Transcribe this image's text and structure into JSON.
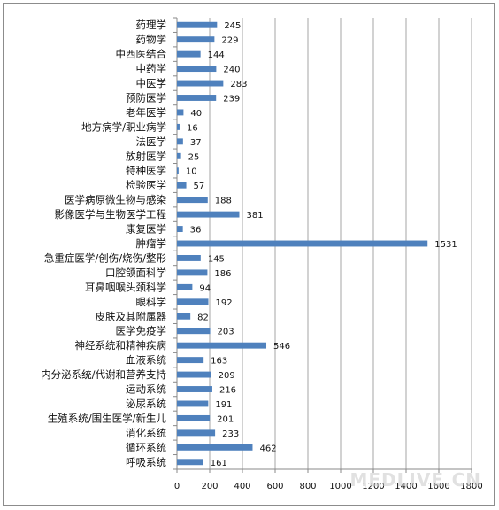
{
  "chart_data": {
    "type": "bar",
    "orientation": "horizontal",
    "categories": [
      "药理学",
      "药物学",
      "中西医结合",
      "中药学",
      "中医学",
      "预防医学",
      "老年医学",
      "地方病学/职业病学",
      "法医学",
      "放射医学",
      "特种医学",
      "检验医学",
      "医学病原微生物与感染",
      "影像医学与生物医学工程",
      "康复医学",
      "肿瘤学",
      "急重症医学/创伤/烧伤/整形",
      "口腔颌面科学",
      "耳鼻咽喉头颈科学",
      "眼科学",
      "皮肤及其附属器",
      "医学免疫学",
      "神经系统和精神疾病",
      "血液系统",
      "内分泌系统/代谢和营养支持",
      "运动系统",
      "泌尿系统",
      "生殖系统/围生医学/新生儿",
      "消化系统",
      "循环系统",
      "呼吸系统"
    ],
    "values": [
      245,
      229,
      144,
      240,
      283,
      239,
      40,
      16,
      37,
      25,
      10,
      57,
      188,
      381,
      36,
      1531,
      145,
      186,
      94,
      192,
      82,
      203,
      546,
      163,
      209,
      216,
      191,
      201,
      233,
      462,
      161
    ],
    "xlim": [
      0,
      1800
    ],
    "xticks": [
      "0",
      "200",
      "400",
      "600",
      "800",
      "1000",
      "1200",
      "1400",
      "1600",
      "1800"
    ],
    "grid": true,
    "legend": "none",
    "bar_color": "#4f81bd",
    "grid_color": "#a6a6a6",
    "title": "",
    "xlabel": "",
    "ylabel": ""
  },
  "watermark": "MEDLIVE.CN"
}
